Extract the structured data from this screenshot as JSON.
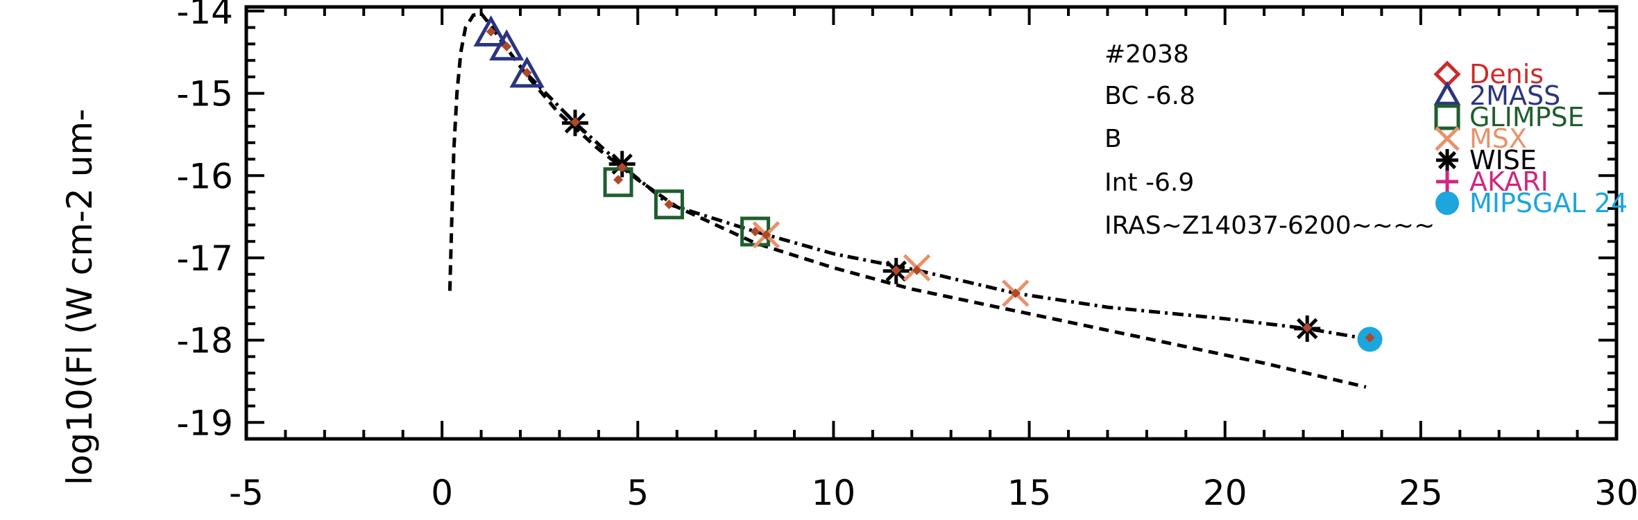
{
  "chart_data": {
    "type": "scatter",
    "xlim": [
      -5,
      30
    ],
    "ylim": [
      -19.2,
      -13.95
    ],
    "x_ticks": [
      "-5",
      "0",
      "5",
      "10",
      "15",
      "20",
      "25",
      "30"
    ],
    "x_tick_values": [
      -5,
      0,
      5,
      10,
      15,
      20,
      25,
      30
    ],
    "y_ticks": [
      "-14",
      "-15",
      "-16",
      "-17",
      "-18",
      "-19"
    ],
    "y_tick_values": [
      -14,
      -15,
      -16,
      -17,
      -18,
      -19
    ],
    "ylabel": "log10(Fl (W cm-2 um-",
    "xlabel": "",
    "annotations": [
      "#2038",
      "BC -6.8",
      "B",
      "Int -6.9",
      "IRAS~Z14037-6200~~~~"
    ],
    "legend": {
      "position": "top-right",
      "entries": [
        {
          "name": "Denis",
          "color": "#cc2b2b",
          "marker": "diamond"
        },
        {
          "name": "2MASS",
          "color": "#2b3580",
          "marker": "triangle"
        },
        {
          "name": "GLIMPSE",
          "color": "#1f5e2e",
          "marker": "square"
        },
        {
          "name": "MSX",
          "color": "#e8926a",
          "marker": "x"
        },
        {
          "name": "WISE",
          "color": "#000000",
          "marker": "asterisk"
        },
        {
          "name": "AKARI",
          "color": "#d1267f",
          "marker": "plus"
        },
        {
          "name": "MIPSGAL 24",
          "color": "#1ba6dd",
          "marker": "circle"
        }
      ]
    },
    "series": [
      {
        "name": "2MASS",
        "marker": "triangle",
        "color": "#2b3580",
        "points": [
          [
            1.25,
            -14.28
          ],
          [
            1.65,
            -14.45
          ],
          [
            2.17,
            -14.78
          ]
        ]
      },
      {
        "name": "WISE",
        "marker": "asterisk",
        "color": "#000000",
        "points": [
          [
            3.4,
            -15.36
          ],
          [
            4.6,
            -15.86
          ],
          [
            11.6,
            -17.16
          ],
          [
            22.1,
            -17.86
          ]
        ]
      },
      {
        "name": "GLIMPSE",
        "marker": "square",
        "color": "#1f5e2e",
        "points": [
          [
            4.5,
            -16.08
          ],
          [
            5.8,
            -16.35
          ],
          [
            8.0,
            -16.68
          ]
        ]
      },
      {
        "name": "MSX",
        "marker": "x",
        "color": "#e8926a",
        "points": [
          [
            8.28,
            -16.72
          ],
          [
            12.13,
            -17.12
          ],
          [
            14.65,
            -17.43
          ]
        ]
      },
      {
        "name": "MIPSGAL 24",
        "marker": "circle",
        "color": "#1ba6dd",
        "points": [
          [
            23.7,
            -17.99
          ]
        ]
      },
      {
        "name": "model-points",
        "marker": "small-diamond",
        "color": "#b0482a",
        "points": [
          [
            1.25,
            -14.25
          ],
          [
            1.65,
            -14.43
          ],
          [
            2.17,
            -14.75
          ],
          [
            3.4,
            -15.35
          ],
          [
            4.5,
            -16.05
          ],
          [
            4.6,
            -15.9
          ],
          [
            5.8,
            -16.35
          ],
          [
            8.0,
            -16.68
          ],
          [
            8.28,
            -16.72
          ],
          [
            11.6,
            -17.15
          ],
          [
            12.13,
            -17.15
          ],
          [
            14.65,
            -17.43
          ],
          [
            22.1,
            -17.85
          ],
          [
            23.7,
            -17.97
          ]
        ]
      }
    ],
    "curves": [
      {
        "style": "dashed",
        "points": [
          [
            0.2,
            -17.4
          ],
          [
            0.25,
            -16.5
          ],
          [
            0.3,
            -15.7
          ],
          [
            0.38,
            -15.0
          ],
          [
            0.48,
            -14.5
          ],
          [
            0.6,
            -14.2
          ],
          [
            0.8,
            -14.05
          ],
          [
            1.0,
            -14.03
          ],
          [
            1.2,
            -14.15
          ],
          [
            1.6,
            -14.42
          ],
          [
            2.2,
            -14.8
          ],
          [
            3.0,
            -15.25
          ],
          [
            4.0,
            -15.68
          ],
          [
            5.0,
            -16.05
          ],
          [
            6.0,
            -16.38
          ],
          [
            8.0,
            -16.82
          ],
          [
            10.0,
            -17.12
          ],
          [
            12.0,
            -17.38
          ],
          [
            15.0,
            -17.68
          ],
          [
            18.0,
            -17.98
          ],
          [
            21.0,
            -18.28
          ],
          [
            23.6,
            -18.57
          ]
        ]
      },
      {
        "style": "dash-dot",
        "points": [
          [
            2.2,
            -14.78
          ],
          [
            3.4,
            -15.36
          ],
          [
            4.6,
            -15.88
          ],
          [
            5.8,
            -16.35
          ],
          [
            8.0,
            -16.68
          ],
          [
            10.0,
            -16.95
          ],
          [
            12.13,
            -17.15
          ],
          [
            14.65,
            -17.43
          ],
          [
            17.0,
            -17.6
          ],
          [
            20.0,
            -17.74
          ],
          [
            22.1,
            -17.86
          ],
          [
            23.7,
            -17.99
          ]
        ]
      }
    ]
  }
}
